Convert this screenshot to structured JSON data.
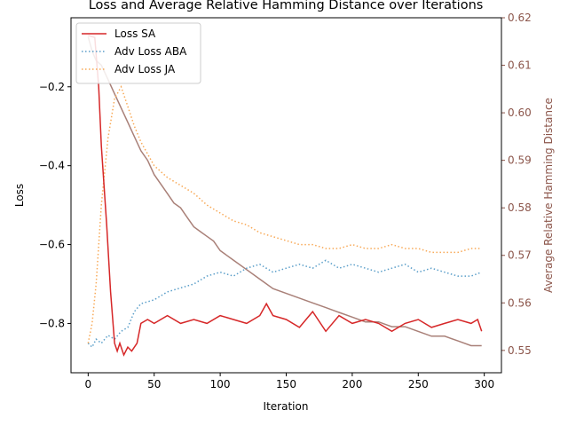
{
  "chart_data": {
    "type": "line",
    "title": "Loss and Average Relative Hamming Distance over Iterations",
    "xlabel": "Iteration",
    "ylabel": "Loss",
    "y2label": "Average Relative Hamming Distance",
    "xlim": [
      -13,
      313
    ],
    "ylim": [
      -0.925,
      -0.025
    ],
    "y2lim": [
      0.5453,
      0.62
    ],
    "xticks": [
      0,
      50,
      100,
      150,
      200,
      250,
      300
    ],
    "yticks": [
      -0.8,
      -0.6,
      -0.4,
      -0.2
    ],
    "y2ticks": [
      0.55,
      0.56,
      0.57,
      0.58,
      0.59,
      0.6,
      0.61,
      0.62
    ],
    "legend_position": "upper-left",
    "colors": {
      "loss_sa": "#d62728",
      "adv_aba": "#5a9ec9",
      "adv_ja": "#f8a957",
      "hamming": "#8c564b",
      "right_axis": "#8c564b"
    },
    "series": [
      {
        "name": "Loss SA",
        "axis": "left",
        "style": "solid",
        "x": [
          0,
          5,
          8,
          10,
          14,
          17,
          20,
          22,
          24,
          27,
          30,
          33,
          37,
          40,
          45,
          50,
          60,
          70,
          80,
          90,
          100,
          110,
          120,
          130,
          135,
          140,
          150,
          160,
          170,
          180,
          190,
          200,
          210,
          220,
          230,
          240,
          250,
          260,
          270,
          280,
          290,
          295,
          298
        ],
        "y": [
          -0.07,
          -0.075,
          -0.2,
          -0.35,
          -0.55,
          -0.72,
          -0.85,
          -0.87,
          -0.85,
          -0.88,
          -0.86,
          -0.87,
          -0.85,
          -0.8,
          -0.79,
          -0.8,
          -0.78,
          -0.8,
          -0.79,
          -0.8,
          -0.78,
          -0.79,
          -0.8,
          -0.78,
          -0.75,
          -0.78,
          -0.79,
          -0.81,
          -0.77,
          -0.82,
          -0.78,
          -0.8,
          -0.79,
          -0.8,
          -0.82,
          -0.8,
          -0.79,
          -0.81,
          -0.8,
          -0.79,
          -0.8,
          -0.79,
          -0.82
        ]
      },
      {
        "name": "Adv Loss ABA",
        "axis": "left",
        "style": "dotted",
        "x": [
          0,
          3,
          6,
          10,
          15,
          20,
          25,
          30,
          35,
          40,
          50,
          60,
          70,
          80,
          90,
          100,
          110,
          120,
          130,
          140,
          150,
          160,
          170,
          180,
          190,
          200,
          210,
          220,
          230,
          240,
          250,
          260,
          270,
          280,
          290,
          298
        ],
        "y": [
          -0.85,
          -0.86,
          -0.84,
          -0.85,
          -0.83,
          -0.84,
          -0.82,
          -0.81,
          -0.77,
          -0.75,
          -0.74,
          -0.72,
          -0.71,
          -0.7,
          -0.68,
          -0.67,
          -0.68,
          -0.66,
          -0.65,
          -0.67,
          -0.66,
          -0.65,
          -0.66,
          -0.64,
          -0.66,
          -0.65,
          -0.66,
          -0.67,
          -0.66,
          -0.65,
          -0.67,
          -0.66,
          -0.67,
          -0.68,
          -0.68,
          -0.67
        ]
      },
      {
        "name": "Adv Loss JA",
        "axis": "left",
        "style": "dotted",
        "x": [
          0,
          3,
          6,
          10,
          15,
          20,
          25,
          30,
          35,
          40,
          50,
          60,
          70,
          80,
          90,
          100,
          110,
          120,
          130,
          140,
          150,
          160,
          170,
          180,
          190,
          200,
          210,
          220,
          230,
          240,
          250,
          260,
          270,
          280,
          290,
          298
        ],
        "y": [
          -0.85,
          -0.8,
          -0.7,
          -0.5,
          -0.33,
          -0.23,
          -0.2,
          -0.25,
          -0.3,
          -0.34,
          -0.4,
          -0.43,
          -0.45,
          -0.47,
          -0.5,
          -0.52,
          -0.54,
          -0.55,
          -0.57,
          -0.58,
          -0.59,
          -0.6,
          -0.6,
          -0.61,
          -0.61,
          -0.6,
          -0.61,
          -0.61,
          -0.6,
          -0.61,
          -0.61,
          -0.62,
          -0.62,
          -0.62,
          -0.61,
          -0.61
        ]
      },
      {
        "name": "",
        "axis": "right",
        "style": "solid",
        "x": [
          0,
          3,
          6,
          10,
          15,
          20,
          25,
          30,
          35,
          40,
          45,
          50,
          55,
          60,
          65,
          70,
          75,
          80,
          85,
          90,
          95,
          100,
          110,
          120,
          130,
          140,
          150,
          160,
          170,
          180,
          190,
          200,
          210,
          220,
          230,
          240,
          250,
          260,
          270,
          280,
          290,
          298
        ],
        "y": [
          0.616,
          0.613,
          0.611,
          0.61,
          0.607,
          0.604,
          0.601,
          0.598,
          0.595,
          0.592,
          0.59,
          0.587,
          0.585,
          0.583,
          0.581,
          0.58,
          0.578,
          0.576,
          0.575,
          0.574,
          0.573,
          0.571,
          0.569,
          0.567,
          0.565,
          0.563,
          0.562,
          0.561,
          0.56,
          0.559,
          0.558,
          0.557,
          0.556,
          0.556,
          0.555,
          0.555,
          0.554,
          0.553,
          0.553,
          0.552,
          0.551,
          0.551
        ]
      }
    ]
  }
}
